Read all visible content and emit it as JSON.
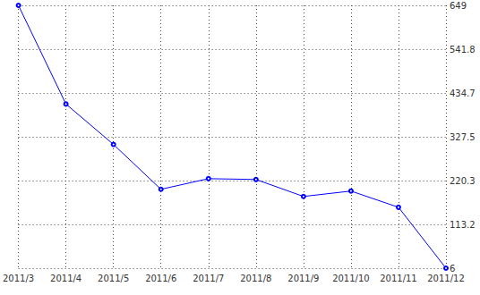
{
  "chart_data": {
    "type": "line",
    "categories": [
      "2011/3",
      "2011/4",
      "2011/5",
      "2011/6",
      "2011/7",
      "2011/8",
      "2011/9",
      "2011/10",
      "2011/11",
      "2011/12"
    ],
    "values": [
      649,
      407.6,
      308.8,
      199,
      225,
      223,
      181.5,
      194.7,
      155,
      6
    ],
    "color": "#0000ff",
    "marker": "circle",
    "ylim": [
      6,
      649
    ],
    "yticks": [
      6,
      {
        "value": 113.1667,
        "label": "113.2"
      },
      {
        "value": 220.3333,
        "label": "220.3"
      },
      327.5,
      {
        "value": 434.6667,
        "label": "434.7"
      },
      {
        "value": 541.8333,
        "label": "541.8"
      },
      649
    ],
    "grid": true
  }
}
